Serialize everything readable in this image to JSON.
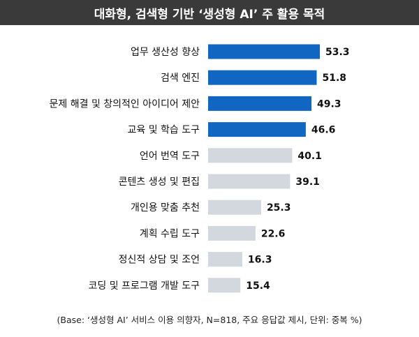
{
  "title": "대화형, 검색형 기반 ‘생성형 AI’ 주 활용 목적",
  "note": "(Base: ‘생성형 AI’ 서비스 이용 의향자, N=818, 주요 응답값 제시, 단위: 중복 %)",
  "colors": {
    "highlight": "#1066c0",
    "muted": "#d3d8df",
    "title_bg": "#3a3a3a"
  },
  "chart_data": {
    "type": "bar",
    "orientation": "horizontal",
    "categories": [
      "업무 생산성 향상",
      "검색 엔진",
      "문제 해결 및 창의적인 아이디어 제안",
      "교육 및 학습 도구",
      "언어 번역 도구",
      "콘텐츠 생성 및 편집",
      "개인용 맞춤 추천",
      "계획 수립 도구",
      "정신적 상담 및 조언",
      "코딩 및 프로그램 개발 도구"
    ],
    "values": [
      53.3,
      51.8,
      49.3,
      46.6,
      40.1,
      39.1,
      25.3,
      22.6,
      16.3,
      15.4
    ],
    "value_labels": [
      "53.3",
      "51.8",
      "49.3",
      "46.6",
      "40.1",
      "39.1",
      "25.3",
      "22.6",
      "16.3",
      "15.4"
    ],
    "highlighted_count": 4,
    "xlim": [
      0,
      53.3
    ],
    "grid": false,
    "legend": "none"
  }
}
